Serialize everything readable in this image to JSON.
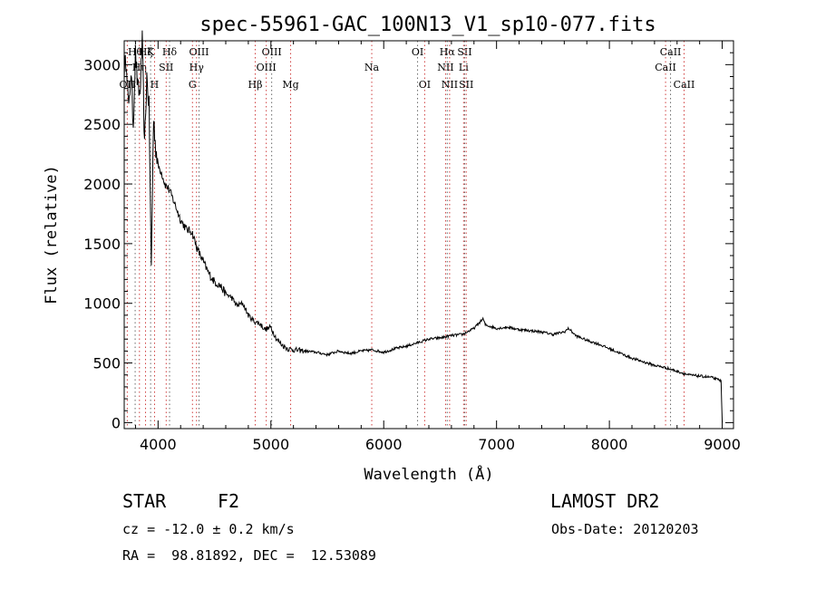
{
  "chart_data": {
    "type": "line",
    "title": "spec-55961-GAC_100N13_V1_sp10-077.fits",
    "xlabel": "Wavelength (Å)",
    "ylabel": "Flux (relative)",
    "xlim": [
      3700,
      9100
    ],
    "ylim": [
      -50,
      3200
    ],
    "x_ticks": [
      4000,
      5000,
      6000,
      7000,
      8000,
      9000
    ],
    "y_ticks": [
      0,
      500,
      1000,
      1500,
      2000,
      2500,
      3000
    ],
    "grid": false,
    "series": [
      {
        "name": "flux",
        "x": [
          3700,
          3720,
          3740,
          3760,
          3780,
          3800,
          3820,
          3840,
          3860,
          3880,
          3900,
          3920,
          3940,
          3960,
          3980,
          4000,
          4030,
          4060,
          4100,
          4150,
          4200,
          4250,
          4300,
          4350,
          4400,
          4450,
          4500,
          4550,
          4600,
          4650,
          4700,
          4750,
          4800,
          4850,
          4900,
          4950,
          5000,
          5050,
          5100,
          5150,
          5200,
          5300,
          5400,
          5500,
          5600,
          5700,
          5800,
          5900,
          6000,
          6100,
          6200,
          6300,
          6400,
          6500,
          6600,
          6700,
          6800,
          6860,
          6880,
          6900,
          7000,
          7100,
          7200,
          7300,
          7400,
          7500,
          7600,
          7640,
          7700,
          7800,
          7900,
          8000,
          8100,
          8200,
          8300,
          8400,
          8500,
          8600,
          8700,
          8800,
          8900,
          8990,
          9000
        ],
        "y": [
          2950,
          3050,
          2600,
          2950,
          2500,
          3100,
          2800,
          2750,
          3200,
          2300,
          2900,
          2650,
          1300,
          2550,
          2300,
          2150,
          2100,
          2000,
          1950,
          1830,
          1700,
          1620,
          1600,
          1450,
          1350,
          1250,
          1180,
          1150,
          1080,
          1050,
          980,
          1000,
          900,
          850,
          830,
          780,
          800,
          700,
          650,
          620,
          610,
          600,
          590,
          570,
          600,
          580,
          600,
          610,
          590,
          620,
          640,
          670,
          700,
          710,
          730,
          740,
          790,
          850,
          870,
          820,
          790,
          800,
          780,
          770,
          760,
          740,
          760,
          790,
          730,
          690,
          660,
          620,
          580,
          540,
          510,
          480,
          460,
          430,
          400,
          390,
          380,
          350,
          0
        ]
      }
    ],
    "lines": [
      {
        "name": "OII",
        "x": 3727,
        "row": 2
      },
      {
        "name": "Hθ",
        "x": 3797,
        "row": 0
      },
      {
        "name": "Hη",
        "x": 3835,
        "row": 1
      },
      {
        "name": "Hζ",
        "x": 3889,
        "row": 0
      },
      {
        "name": "K",
        "x": 3934,
        "row": 0
      },
      {
        "name": "H",
        "x": 3969,
        "row": 2
      },
      {
        "name": "SII",
        "x": 4072,
        "row": 1
      },
      {
        "name": "Hδ",
        "x": 4102,
        "row": 0
      },
      {
        "name": "G",
        "x": 4305,
        "row": 2
      },
      {
        "name": "Hγ",
        "x": 4341,
        "row": 1
      },
      {
        "name": "OIII",
        "x": 4363,
        "row": 0
      },
      {
        "name": "Hβ",
        "x": 4861,
        "row": 2
      },
      {
        "name": "OIII",
        "x": 4959,
        "row": 1
      },
      {
        "name": "OIII",
        "x": 5007,
        "row": 0
      },
      {
        "name": "Mg",
        "x": 5175,
        "row": 2
      },
      {
        "name": "Na",
        "x": 5894,
        "row": 1
      },
      {
        "name": "OI",
        "x": 6300,
        "row": 0
      },
      {
        "name": "OI",
        "x": 6363,
        "row": 2
      },
      {
        "name": "NII",
        "x": 6548,
        "row": 1
      },
      {
        "name": "Hα",
        "x": 6563,
        "row": 0
      },
      {
        "name": "NII",
        "x": 6584,
        "row": 2
      },
      {
        "name": "Li",
        "x": 6708,
        "row": 1
      },
      {
        "name": "SII",
        "x": 6717,
        "row": 0
      },
      {
        "name": "SII",
        "x": 6731,
        "row": 2
      },
      {
        "name": "CaII",
        "x": 8498,
        "row": 1
      },
      {
        "name": "CaII",
        "x": 8542,
        "row": 0
      },
      {
        "name": "CaII",
        "x": 8662,
        "row": 2
      }
    ]
  },
  "info": {
    "object_class": "STAR",
    "subclass": "F2",
    "cz": "cz = -12.0 ± 0.2 km/s",
    "coords": "RA =  98.81892, DEC =  12.53089",
    "survey": "LAMOST DR2",
    "obs_date": "Obs-Date: 20120203"
  },
  "colors": {
    "line_marker": "#d04040",
    "line_marker_alt": "#6a6a6a",
    "spectrum": "#000000"
  }
}
